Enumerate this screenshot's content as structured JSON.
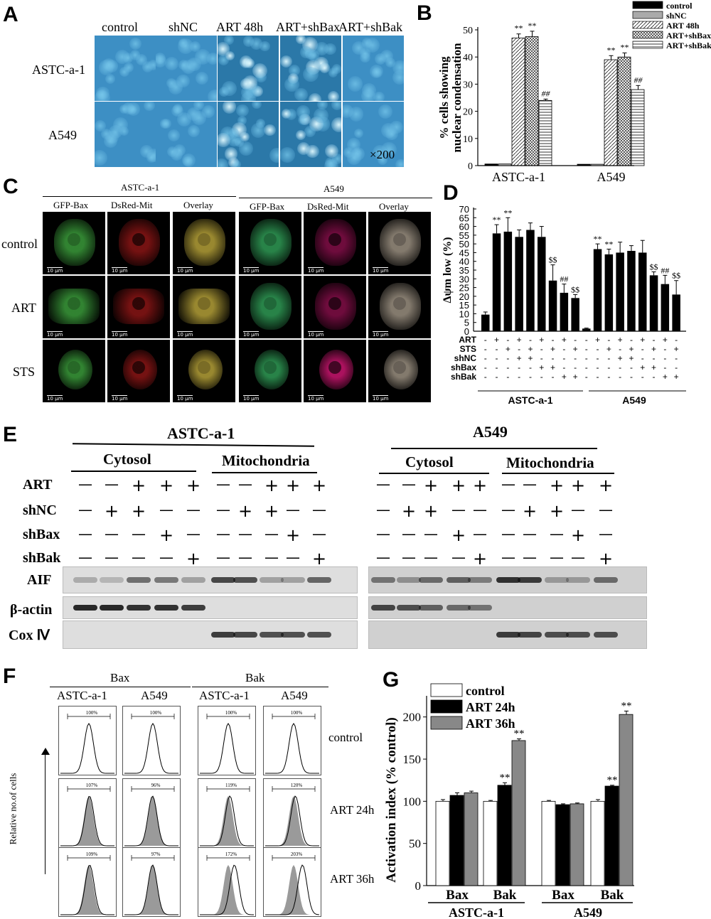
{
  "panel_labels": {
    "A": "A",
    "B": "B",
    "C": "C",
    "D": "D",
    "E": "E",
    "F": "F",
    "G": "G"
  },
  "panelA": {
    "columns": [
      "control",
      "shNC",
      "ART 48h",
      "ART+shBax",
      "ART+shBak"
    ],
    "rows": [
      "ASTC-a-1",
      "A549"
    ],
    "magnification": "×200"
  },
  "panelB": {
    "ylabel_line1": "% cells showing",
    "ylabel_line2": "nuclear condensation",
    "star": "**",
    "hash": "##"
  },
  "panelC": {
    "groups": [
      "ASTC-a-1",
      "A549"
    ],
    "channels": [
      "GFP-Bax",
      "DsRed-Mit",
      "Overlay"
    ],
    "rows": [
      "control",
      "ART",
      "STS"
    ],
    "scale_text": "10 μm"
  },
  "panelD": {
    "ylabel": "Δψm low  (%)",
    "row_labels": [
      "ART",
      "STS",
      "shNC",
      "shBax",
      "shBak"
    ],
    "group_labels": [
      "ASTC-a-1",
      "A549"
    ],
    "signs": [
      [
        "-",
        "+",
        "-",
        "+",
        "-",
        "+",
        "-",
        "+",
        "-",
        "-",
        "+",
        "-",
        "+",
        "-",
        "+",
        "-",
        "+",
        "-"
      ],
      [
        "-",
        "-",
        "+",
        "-",
        "+",
        "-",
        "+",
        "-",
        "+",
        "-",
        "-",
        "+",
        "-",
        "+",
        "-",
        "+",
        "-",
        "+"
      ],
      [
        "-",
        "-",
        "-",
        "+",
        "+",
        "-",
        "-",
        "-",
        "-",
        "-",
        "-",
        "-",
        "+",
        "+",
        "-",
        "-",
        "-",
        "-"
      ],
      [
        "-",
        "-",
        "-",
        "-",
        "-",
        "+",
        "+",
        "-",
        "-",
        "-",
        "-",
        "-",
        "-",
        "-",
        "+",
        "+",
        "-",
        "-"
      ],
      [
        "-",
        "-",
        "-",
        "-",
        "-",
        "-",
        "-",
        "+",
        "+",
        "-",
        "-",
        "-",
        "-",
        "-",
        "-",
        "-",
        "+",
        "+"
      ]
    ],
    "star": "**",
    "dollar": "$$",
    "hash": "##"
  },
  "panelE": {
    "groups": [
      "ASTC-a-1",
      "A549"
    ],
    "fractions": [
      "Cytosol",
      "Mitochondria"
    ],
    "treatments": [
      "ART",
      "shNC",
      "shBax",
      "shBak"
    ],
    "signs": [
      [
        "—",
        "—",
        "+",
        "+",
        "+"
      ],
      [
        "—",
        "+",
        "+",
        "—",
        "—"
      ],
      [
        "—",
        "—",
        "—",
        "+",
        "—"
      ],
      [
        "—",
        "—",
        "—",
        "—",
        "+"
      ]
    ],
    "proteins": [
      "AIF",
      "β-actin",
      "Cox Ⅳ"
    ]
  },
  "panelF": {
    "groups": [
      "Bax",
      "Bak"
    ],
    "cells": [
      "ASTC-a-1",
      "A549",
      "ASTC-a-1",
      "A549"
    ],
    "rows": [
      "control",
      "ART 24h",
      "ART 36h"
    ],
    "ylabel": "Relative no.of cells",
    "percents": [
      [
        "100%",
        "100%",
        "100%",
        "100%"
      ],
      [
        "107%",
        "96%",
        "119%",
        "120%"
      ],
      [
        "109%",
        "97%",
        "172%",
        "203%"
      ]
    ]
  },
  "panelG": {
    "ylabel": "Activation index (% control)",
    "star": "**",
    "groups": [
      "ASTC-a-1",
      "A549"
    ]
  },
  "chart_data": [
    {
      "type": "bar",
      "panel": "B",
      "categories": [
        "ASTC-a-1",
        "A549"
      ],
      "series": [
        {
          "name": "control",
          "values": [
            0.6,
            0.5
          ],
          "errors": [
            0.2,
            0.2
          ],
          "color": "#000000"
        },
        {
          "name": "shNC",
          "values": [
            0.6,
            0.5
          ],
          "errors": [
            0.2,
            0.2
          ],
          "color": "#aaaaaa"
        },
        {
          "name": "ART 48h",
          "values": [
            47,
            39
          ],
          "errors": [
            1.5,
            1.5
          ],
          "color": "hatch-diag"
        },
        {
          "name": "ART+shBax",
          "values": [
            47.5,
            40
          ],
          "errors": [
            2,
            1.5
          ],
          "color": "hatch-cross"
        },
        {
          "name": "ART+shBak",
          "values": [
            24,
            28
          ],
          "errors": [
            0.5,
            1.5
          ],
          "color": "hatch-horiz"
        }
      ],
      "ylim": [
        0,
        50
      ],
      "yticks": [
        0,
        10,
        20,
        30,
        40,
        50
      ],
      "legend": "top-right"
    },
    {
      "type": "bar",
      "panel": "D",
      "groups": [
        "ASTC-a-1",
        "A549"
      ],
      "values": [
        9.5,
        56,
        57,
        54,
        58,
        54,
        29,
        22,
        19,
        1.5,
        47,
        44,
        45,
        46,
        45,
        32,
        27,
        21
      ],
      "errors": [
        1.5,
        5,
        8,
        4,
        4,
        6,
        9,
        5,
        2,
        0.3,
        3,
        3,
        6,
        3,
        7,
        2,
        5,
        8
      ],
      "ylim": [
        0,
        70
      ],
      "yticks": [
        0,
        5,
        10,
        15,
        20,
        25,
        30,
        35,
        40,
        45,
        50,
        55,
        60,
        65,
        70
      ]
    },
    {
      "type": "bar",
      "panel": "G",
      "categories": [
        "Bax",
        "Bak",
        "Bax",
        "Bak"
      ],
      "groups": [
        "ASTC-a-1",
        "A549"
      ],
      "series": [
        {
          "name": "control",
          "values": [
            100,
            100,
            100,
            100
          ],
          "errors": [
            2,
            1,
            1,
            2
          ],
          "color": "#ffffff"
        },
        {
          "name": "ART 24h",
          "values": [
            107,
            119,
            96,
            118
          ],
          "errors": [
            3,
            3,
            1,
            1
          ],
          "color": "#000000"
        },
        {
          "name": "ART 36h",
          "values": [
            110,
            172,
            97,
            203
          ],
          "errors": [
            2,
            2,
            1,
            4
          ],
          "color": "#888888"
        }
      ],
      "ylim": [
        0,
        220
      ],
      "yticks": [
        0,
        50,
        100,
        150,
        200
      ],
      "legend": "top-left"
    }
  ]
}
